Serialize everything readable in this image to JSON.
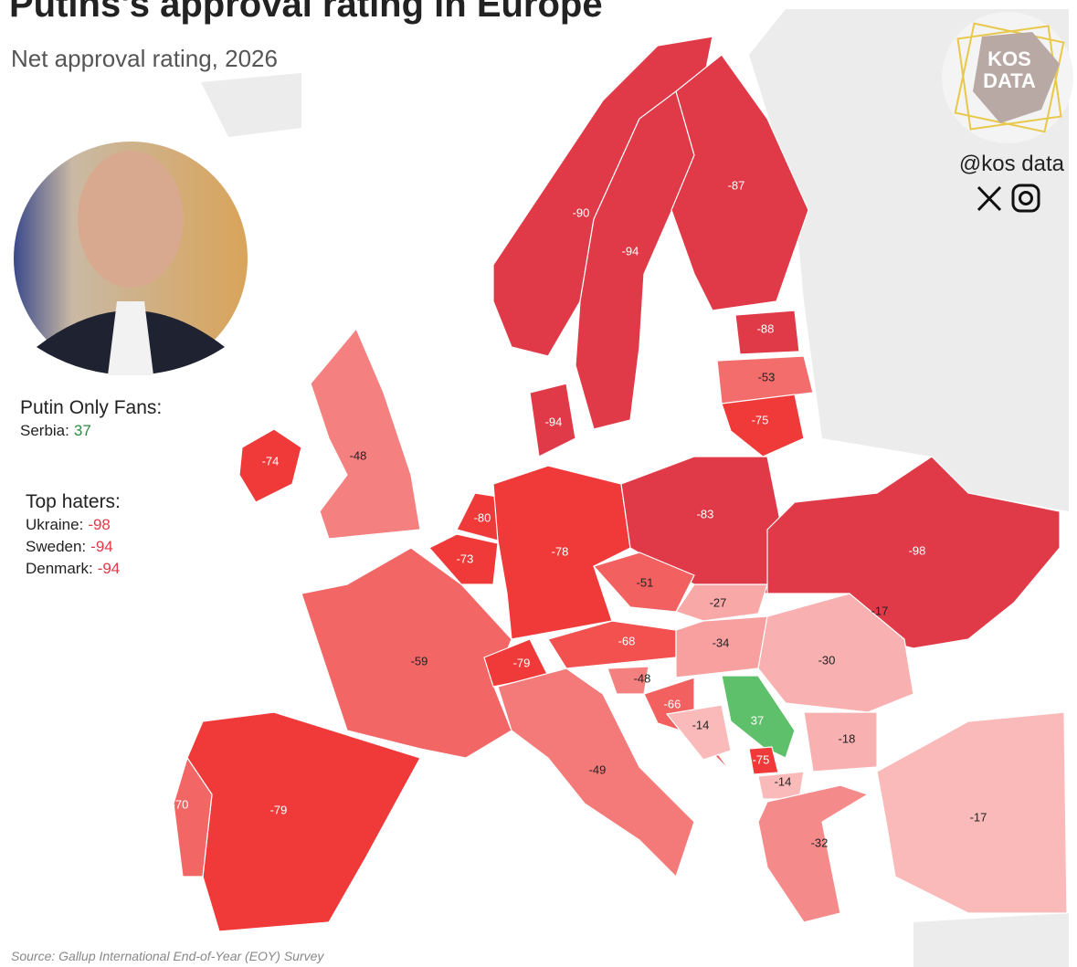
{
  "header": {
    "title": "Putins's approval rating in Europe",
    "subtitle": "Net approval rating, 2026"
  },
  "brand": {
    "logo": [
      "KOS",
      "DATA"
    ],
    "handle": "@kos data"
  },
  "fans": {
    "heading": "Putin Only Fans:",
    "items": [
      {
        "country": "Serbia:",
        "value": 37
      }
    ]
  },
  "haters": {
    "heading": "Top haters:",
    "items": [
      {
        "country": "Ukraine:",
        "value": -98
      },
      {
        "country": "Sweden:",
        "value": -94
      },
      {
        "country": "Denmark:",
        "value": -94
      }
    ]
  },
  "map_labels": [
    -87,
    -90,
    -94,
    -88,
    -53,
    -75,
    -94,
    -74,
    -48,
    -80,
    -83,
    -98,
    -73,
    -78,
    -51,
    -27,
    -17,
    -68,
    -34,
    -30,
    -59,
    -79,
    -48,
    -66,
    -14,
    37,
    -18,
    -75,
    -14,
    -49,
    -32,
    -17,
    -70,
    -79
  ],
  "source": "Source: Gallup International End-of-Year (EOY) Survey"
}
